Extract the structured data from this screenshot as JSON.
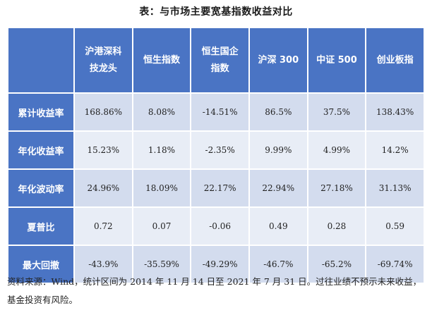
{
  "title": "表：与市场主要宽基指数收益对比",
  "columns": [
    "沪港深科技龙头",
    "恒生指数",
    "恒生国企指数",
    "沪深 300",
    "中证 500",
    "创业板指"
  ],
  "rows": [
    {
      "label": "累计收益率",
      "values": [
        "168.86%",
        "8.08%",
        "-14.51%",
        "86.5%",
        "37.5%",
        "138.43%"
      ]
    },
    {
      "label": "年化收益率",
      "values": [
        "15.23%",
        "1.18%",
        "-2.35%",
        "9.99%",
        "4.99%",
        "14.2%"
      ]
    },
    {
      "label": "年化波动率",
      "values": [
        "24.96%",
        "18.09%",
        "22.17%",
        "22.94%",
        "27.18%",
        "31.13%"
      ]
    },
    {
      "label": "夏普比",
      "values": [
        "0.72",
        "0.07",
        "-0.06",
        "0.49",
        "0.28",
        "0.59"
      ]
    },
    {
      "label": "最大回撤",
      "values": [
        "-43.9%",
        "-35.59%",
        "-49.29%",
        "-46.7%",
        "-65.2%",
        "-69.74%"
      ]
    }
  ],
  "note": "资料来源：Wind，统计区间为 2014 年 11 月 14 日至 2021 年 7 月 31 日。过往业绩不预示未来收益，基金投资有风险。"
}
